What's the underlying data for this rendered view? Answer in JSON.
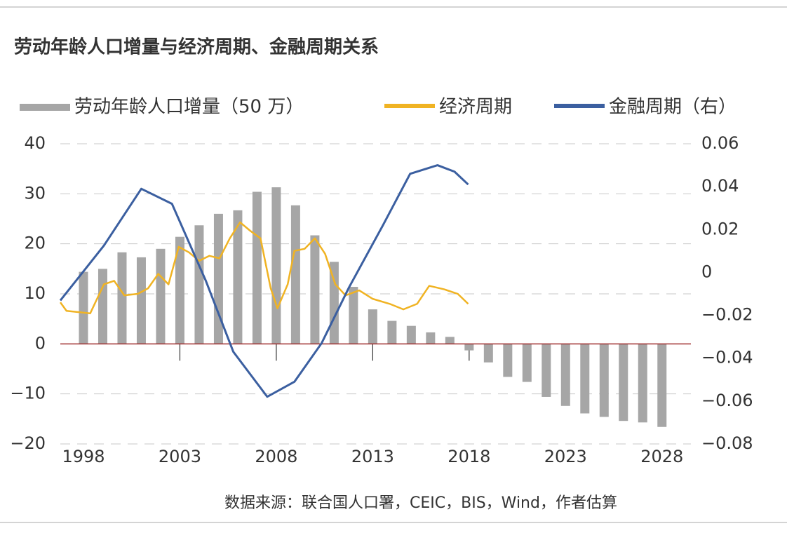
{
  "chart_data": {
    "type": "bar",
    "title": "劳动年龄人口增量与经济周期、金融周期关系",
    "source": "数据来源：联合国人口署，CEIC，BIS，Wind，作者估算",
    "xlim": [
      1996.8,
      2029.5
    ],
    "xticks": [
      1998,
      2003,
      2008,
      2013,
      2018,
      2023,
      2028
    ],
    "ylim": [
      -20,
      40
    ],
    "yticks": [
      {
        "value": -20,
        "label": "−20"
      },
      {
        "value": -10,
        "label": "−10"
      },
      0,
      10,
      20,
      30,
      40
    ],
    "y2lim": [
      -0.08,
      0.06
    ],
    "y2ticks": [
      {
        "value": -0.08,
        "label": "−0.08"
      },
      {
        "value": -0.06,
        "label": "−0.06"
      },
      {
        "value": -0.04,
        "label": "−0.04"
      },
      {
        "value": -0.02,
        "label": "−0.02"
      },
      0,
      0.02,
      0.04,
      0.06
    ],
    "grid": true,
    "legend": "top",
    "series": [
      {
        "name": "劳动年龄人口增量（50 万）",
        "type": "bar",
        "color": "#a6a6a6",
        "x": [
          1998,
          1999,
          2000,
          2001,
          2002,
          2003,
          2004,
          2005,
          2006,
          2007,
          2008,
          2009,
          2010,
          2011,
          2012,
          2013,
          2014,
          2015,
          2016,
          2017,
          2018,
          2019,
          2020,
          2021,
          2022,
          2023,
          2024,
          2025,
          2026,
          2027,
          2028
        ],
        "values": [
          14.4,
          15,
          18.3,
          17.3,
          19,
          21.4,
          23.7,
          26,
          26.7,
          30.4,
          31.3,
          27.7,
          21.7,
          16.4,
          11.4,
          6.9,
          4.6,
          3.6,
          2.3,
          1.4,
          -1.3,
          -3.7,
          -6.6,
          -7.6,
          -10.6,
          -12.4,
          -13.9,
          -14.6,
          -15.4,
          -15.7,
          -16.6
        ]
      },
      {
        "name": "经济周期",
        "type": "line",
        "color": "#f0b323",
        "x": [
          1996.8,
          1997.12,
          1998.35,
          1999.06,
          1999.59,
          2000.12,
          2000.82,
          2001.35,
          2001.88,
          2002.41,
          2002.94,
          2003.47,
          2004.0,
          2004.53,
          2005.06,
          2005.59,
          2006.12,
          2006.65,
          2007.18,
          2007.71,
          2008.06,
          2008.59,
          2008.94,
          2009.47,
          2010.0,
          2010.53,
          2011.06,
          2011.59,
          2012.3,
          2013.0,
          2013.88,
          2014.59,
          2015.3,
          2015.93,
          2016.71,
          2017.41,
          2017.95
        ],
        "values": [
          8.3,
          6.6,
          6.1,
          11.9,
          12.6,
          9.7,
          10,
          11.1,
          14,
          11.9,
          19.4,
          18.3,
          16.6,
          17.6,
          17.1,
          21.1,
          24.3,
          22.6,
          21.1,
          11.1,
          7.1,
          11.9,
          18.6,
          19,
          21.1,
          18,
          11.9,
          9.7,
          10.7,
          9,
          8,
          6.9,
          8,
          11.6,
          10.9,
          10,
          8
        ]
      },
      {
        "name": "金融周期（右）",
        "type": "line",
        "axis": "y2",
        "color": "#3b5fa0",
        "x": [
          1996.8,
          1999.06,
          2001.0,
          2002.59,
          2004.35,
          2005.77,
          2007.53,
          2008.94,
          2010.35,
          2011.77,
          2013.53,
          2014.94,
          2016.36,
          2017.24,
          2017.95
        ],
        "values": [
          -0.0131,
          0.0125,
          0.039,
          0.032,
          -0.004,
          -0.037,
          -0.058,
          -0.051,
          -0.033,
          -0.007,
          0.022,
          0.046,
          0.05,
          0.047,
          0.041
        ]
      }
    ]
  }
}
